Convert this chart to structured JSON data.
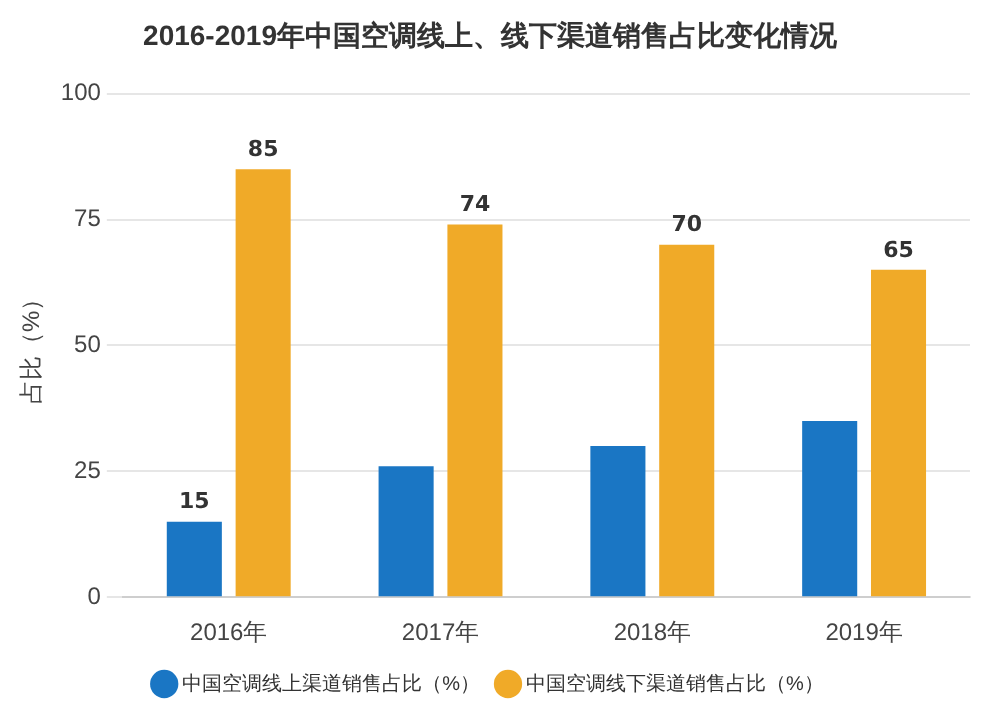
{
  "chart_data": {
    "type": "bar",
    "title": "2016-2019年中国空调线上、线下渠道销售占比变化情况",
    "ylabel": "占比（%）",
    "categories": [
      "2016年",
      "2017年",
      "2018年",
      "2019年"
    ],
    "series": [
      {
        "name": "中国空调线上渠道销售占比（%）",
        "color": "#1a76c4",
        "values": [
          15,
          26,
          30,
          35
        ],
        "value_labels": [
          "15",
          null,
          null,
          null
        ]
      },
      {
        "name": "中国空调线下渠道销售占比（%）",
        "color": "#f0aa28",
        "values": [
          85,
          74,
          70,
          65
        ],
        "value_labels": [
          "85",
          "74",
          "70",
          "65"
        ]
      }
    ],
    "ylim": [
      0,
      100
    ],
    "yticks": [
      0,
      25,
      50,
      75,
      100
    ],
    "grid": "y",
    "legend": "bottom"
  }
}
